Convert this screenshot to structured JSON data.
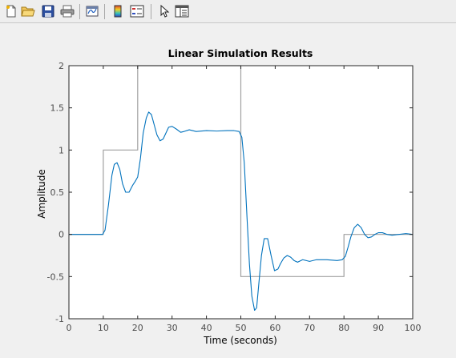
{
  "toolbar": {
    "buttons": [
      {
        "name": "new-figure-icon",
        "tooltip": ""
      },
      {
        "name": "open-file-icon",
        "tooltip": ""
      },
      {
        "name": "save-icon",
        "tooltip": ""
      },
      {
        "name": "print-icon",
        "tooltip": ""
      },
      {
        "name": "link-plot-icon",
        "tooltip": ""
      },
      {
        "name": "insert-colorbar-icon",
        "tooltip": ""
      },
      {
        "name": "insert-legend-icon",
        "tooltip": ""
      },
      {
        "name": "edit-plot-pointer-icon",
        "tooltip": ""
      },
      {
        "name": "property-inspector-icon",
        "tooltip": ""
      }
    ]
  },
  "colors": {
    "response": "#0072bd",
    "input": "#a0a0a0",
    "axes": "#262626",
    "background": "#f0f0f0",
    "plot_area": "#ffffff"
  },
  "chart_data": {
    "type": "line",
    "title": "Linear Simulation Results",
    "xlabel": "Time (seconds)",
    "ylabel": "Amplitude",
    "xlim": [
      0,
      100
    ],
    "ylim": [
      -1,
      2
    ],
    "xticks": [
      0,
      10,
      20,
      30,
      40,
      50,
      60,
      70,
      80,
      90,
      100
    ],
    "yticks": [
      -1,
      -0.5,
      0,
      0.5,
      1,
      1.5,
      2
    ],
    "ytick_labels": [
      "-1",
      "-0.5",
      "0",
      "0.5",
      "1",
      "1.5",
      "2"
    ],
    "grid": false,
    "series": [
      {
        "role": "input",
        "step": true,
        "x": [
          0,
          10,
          10,
          20,
          20,
          50,
          50,
          80,
          80,
          100
        ],
        "y": [
          0,
          0,
          1,
          1,
          2,
          2,
          -0.5,
          -0.5,
          0,
          0
        ]
      },
      {
        "role": "response",
        "x": [
          0,
          9.8,
          10.5,
          11.5,
          12.5,
          13.2,
          14,
          14.8,
          15.6,
          16.5,
          17.5,
          18.5,
          19.3,
          20,
          20.8,
          21.6,
          22.5,
          23.2,
          24,
          24.8,
          25.6,
          26.5,
          27.4,
          28.2,
          29,
          30,
          31.2,
          32.5,
          33.5,
          35,
          37,
          40,
          43,
          46,
          48,
          49.5,
          50.3,
          51,
          51.8,
          52.5,
          53.2,
          54,
          54.6,
          55.2,
          56,
          56.8,
          57.8,
          58.8,
          59.8,
          60.8,
          61.5,
          62.5,
          63.5,
          64.5,
          65.5,
          66.5,
          68,
          70,
          72,
          75,
          78,
          79.5,
          80.4,
          81.2,
          82,
          83,
          84,
          85,
          86,
          87,
          88,
          89,
          90,
          91.2,
          92.5,
          94,
          96,
          98,
          100
        ],
        "y": [
          0,
          0,
          0.05,
          0.35,
          0.7,
          0.83,
          0.85,
          0.77,
          0.6,
          0.5,
          0.5,
          0.58,
          0.63,
          0.68,
          0.9,
          1.2,
          1.38,
          1.45,
          1.42,
          1.3,
          1.18,
          1.11,
          1.13,
          1.2,
          1.27,
          1.28,
          1.25,
          1.21,
          1.22,
          1.24,
          1.22,
          1.23,
          1.225,
          1.23,
          1.23,
          1.22,
          1.15,
          0.85,
          0.2,
          -0.35,
          -0.73,
          -0.9,
          -0.87,
          -0.6,
          -0.25,
          -0.05,
          -0.05,
          -0.25,
          -0.43,
          -0.41,
          -0.35,
          -0.28,
          -0.25,
          -0.27,
          -0.31,
          -0.33,
          -0.3,
          -0.32,
          -0.3,
          -0.3,
          -0.31,
          -0.3,
          -0.26,
          -0.15,
          -0.03,
          0.08,
          0.12,
          0.08,
          0.0,
          -0.04,
          -0.03,
          0.0,
          0.02,
          0.02,
          0.0,
          -0.01,
          0.0,
          0.01,
          0.0
        ]
      }
    ]
  }
}
